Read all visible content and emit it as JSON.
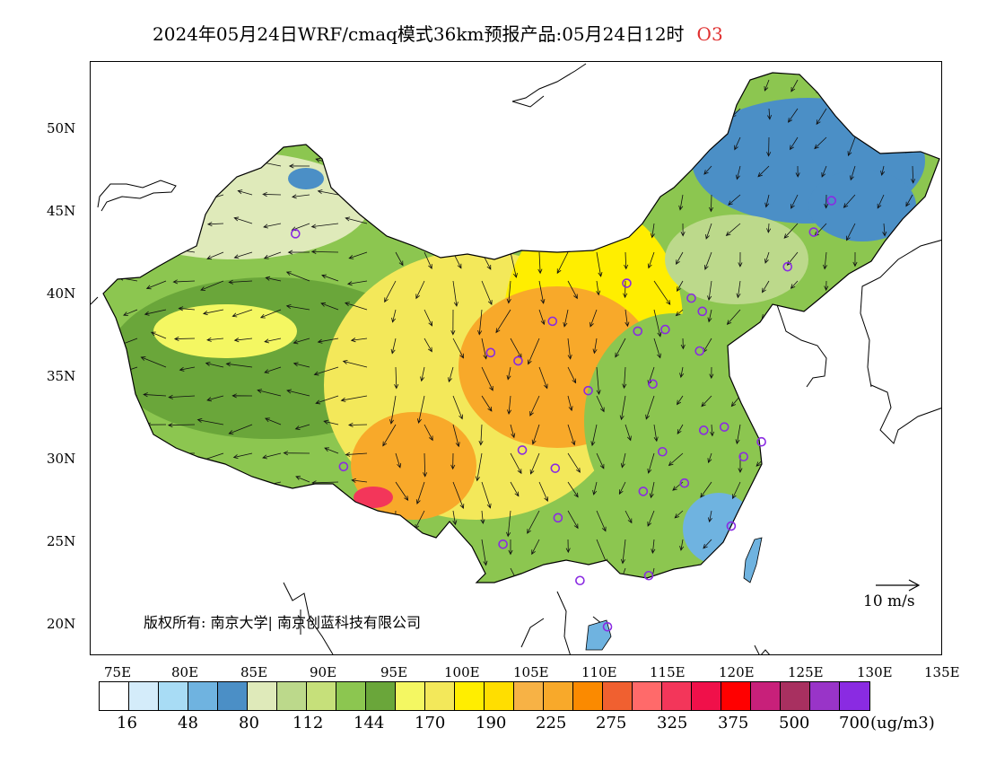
{
  "title": {
    "main": "2024年05月24日WRF/cmaq模式36km预报产品:05月24日12时",
    "pollutant": "O3"
  },
  "axes": {
    "lat_labels": [
      "50N",
      "45N",
      "40N",
      "35N",
      "30N",
      "25N",
      "20N"
    ],
    "lon_labels": [
      "75E",
      "80E",
      "85E",
      "90E",
      "95E",
      "100E",
      "105E",
      "110E",
      "115E",
      "120E",
      "125E",
      "130E",
      "135E"
    ]
  },
  "map": {
    "copyright": "版权所有: 南京大学| 南京创蓝科技有限公司",
    "wind_scale_label": "10  m/s"
  },
  "legend": {
    "colors": [
      "#ffffff",
      "#d4ecfa",
      "#a8dcf5",
      "#6fb3e0",
      "#4b8fc6",
      "#dfeaba",
      "#bcd98b",
      "#c6e07a",
      "#8cc650",
      "#6aa63a",
      "#f4f762",
      "#f3e85a",
      "#ffee00",
      "#ffde00",
      "#f7b245",
      "#f8a92a",
      "#fb8a00",
      "#f06030",
      "#ff6a6a",
      "#f3365a",
      "#f0104a",
      "#ff0000",
      "#c8207a",
      "#a83060",
      "#9934c8",
      "#8a2be2"
    ],
    "labels": [
      "16",
      "48",
      "80",
      "112",
      "144",
      "170",
      "190",
      "225",
      "275",
      "325",
      "375",
      "500",
      "700"
    ],
    "unit": "(ug/m3)"
  },
  "stations": [
    {
      "lon": 87.6,
      "lat": 43.8
    },
    {
      "lon": 91.1,
      "lat": 29.7
    },
    {
      "lon": 101.8,
      "lat": 36.6
    },
    {
      "lon": 103.8,
      "lat": 36.1
    },
    {
      "lon": 106.3,
      "lat": 38.5
    },
    {
      "lon": 111.7,
      "lat": 40.8
    },
    {
      "lon": 108.9,
      "lat": 34.3
    },
    {
      "lon": 104.1,
      "lat": 30.7
    },
    {
      "lon": 106.5,
      "lat": 29.6
    },
    {
      "lon": 106.7,
      "lat": 26.6
    },
    {
      "lon": 102.7,
      "lat": 25.0
    },
    {
      "lon": 108.3,
      "lat": 22.8
    },
    {
      "lon": 110.3,
      "lat": 20.0
    },
    {
      "lon": 113.3,
      "lat": 23.1
    },
    {
      "lon": 112.9,
      "lat": 28.2
    },
    {
      "lon": 114.3,
      "lat": 30.6
    },
    {
      "lon": 115.9,
      "lat": 28.7
    },
    {
      "lon": 113.6,
      "lat": 34.7
    },
    {
      "lon": 112.5,
      "lat": 37.9
    },
    {
      "lon": 114.5,
      "lat": 38.0
    },
    {
      "lon": 116.4,
      "lat": 39.9
    },
    {
      "lon": 117.2,
      "lat": 39.1
    },
    {
      "lon": 117.0,
      "lat": 36.7
    },
    {
      "lon": 117.3,
      "lat": 31.9
    },
    {
      "lon": 118.8,
      "lat": 32.1
    },
    {
      "lon": 121.5,
      "lat": 31.2
    },
    {
      "lon": 120.2,
      "lat": 30.3
    },
    {
      "lon": 119.3,
      "lat": 26.1
    },
    {
      "lon": 123.4,
      "lat": 41.8
    },
    {
      "lon": 125.3,
      "lat": 43.9
    },
    {
      "lon": 126.6,
      "lat": 45.8
    }
  ]
}
